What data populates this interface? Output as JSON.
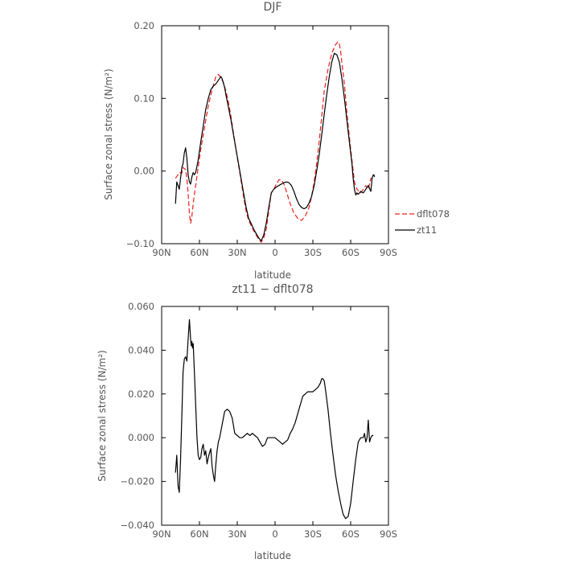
{
  "chart_data": [
    {
      "type": "line",
      "title": "DJF",
      "xlabel": "latitude",
      "ylabel": "Surface zonal stress (N/m²)",
      "xlim": [
        90,
        -90
      ],
      "ylim": [
        -0.1,
        0.2
      ],
      "x_ticks": [
        {
          "value": 90,
          "label": "90N"
        },
        {
          "value": 60,
          "label": "60N"
        },
        {
          "value": 30,
          "label": "30N"
        },
        {
          "value": 0,
          "label": "0"
        },
        {
          "value": -30,
          "label": "30S"
        },
        {
          "value": -60,
          "label": "60S"
        },
        {
          "value": -90,
          "label": "90S"
        }
      ],
      "y_ticks": [
        {
          "value": 0.2,
          "label": "0.20"
        },
        {
          "value": 0.1,
          "label": "0.10"
        },
        {
          "value": 0.0,
          "label": "0.00"
        },
        {
          "value": -0.1,
          "label": "−0.10"
        }
      ],
      "legend_position": "right",
      "series": [
        {
          "name": "dflt078",
          "color": "#e8211f",
          "dash": "dashed",
          "x": [
            79,
            77,
            76,
            74,
            73,
            71,
            70,
            69,
            68,
            67,
            66,
            65,
            64,
            63,
            61,
            59,
            56,
            53,
            50,
            47,
            45,
            44,
            43,
            41,
            39,
            37,
            35,
            33,
            31,
            29,
            27,
            25,
            23,
            21,
            19,
            17,
            15,
            13,
            11,
            9,
            7,
            5,
            3,
            1,
            -1,
            -3,
            -5,
            -7,
            -9,
            -12,
            -15,
            -18,
            -21,
            -24,
            -27,
            -29,
            -31,
            -33,
            -35,
            -37,
            -39,
            -42,
            -45,
            -48,
            -50,
            -51,
            -52,
            -53,
            -55,
            -57,
            -60,
            -63,
            -65,
            -68,
            -70,
            -72,
            -74,
            -76,
            -77,
            -79
          ],
          "values": [
            -0.01,
            -0.005,
            -0.002,
            -0.003,
            0.005,
            0.002,
            -0.01,
            -0.03,
            -0.058,
            -0.072,
            -0.062,
            -0.045,
            -0.032,
            -0.02,
            0.005,
            0.03,
            0.06,
            0.09,
            0.112,
            0.13,
            0.133,
            0.131,
            0.128,
            0.122,
            0.11,
            0.095,
            0.075,
            0.052,
            0.03,
            0.008,
            -0.013,
            -0.035,
            -0.055,
            -0.068,
            -0.075,
            -0.082,
            -0.088,
            -0.094,
            -0.098,
            -0.092,
            -0.08,
            -0.055,
            -0.03,
            -0.025,
            -0.018,
            -0.012,
            -0.012,
            -0.018,
            -0.028,
            -0.045,
            -0.058,
            -0.065,
            -0.068,
            -0.062,
            -0.05,
            -0.035,
            -0.015,
            0.01,
            0.04,
            0.075,
            0.11,
            0.14,
            0.162,
            0.174,
            0.178,
            0.175,
            0.165,
            0.15,
            0.12,
            0.08,
            0.03,
            -0.015,
            -0.025,
            -0.03,
            -0.025,
            -0.02,
            -0.025,
            -0.01,
            -0.01,
            -0.005
          ]
        },
        {
          "name": "zt11",
          "color": "#000000",
          "dash": "solid",
          "x": [
            79,
            78,
            77,
            76,
            75,
            74,
            73,
            72,
            71,
            70,
            69,
            68,
            67,
            66,
            65,
            64,
            63,
            61,
            59,
            57,
            55,
            53,
            51,
            49,
            47,
            45,
            43,
            42,
            41,
            40,
            39,
            37,
            35,
            33,
            31,
            29,
            27,
            25,
            23,
            21,
            19,
            17,
            15,
            13,
            11,
            9,
            7,
            5,
            3,
            1,
            -1,
            -3,
            -5,
            -7,
            -9,
            -11,
            -13,
            -15,
            -17,
            -19,
            -21,
            -23,
            -25,
            -27,
            -29,
            -31,
            -33,
            -35,
            -37,
            -39,
            -41,
            -43,
            -45,
            -47,
            -49,
            -51,
            -53,
            -55,
            -57,
            -59,
            -61,
            -62,
            -63,
            -64,
            -65,
            -66,
            -68,
            -70,
            -72,
            -74,
            -76,
            -77,
            -78,
            -79
          ],
          "values": [
            -0.045,
            -0.015,
            -0.02,
            -0.025,
            -0.01,
            0.005,
            0.01,
            0.025,
            0.032,
            0.018,
            -0.005,
            -0.015,
            -0.018,
            -0.008,
            -0.002,
            -0.005,
            -0.002,
            0.015,
            0.04,
            0.062,
            0.085,
            0.1,
            0.112,
            0.117,
            0.12,
            0.125,
            0.13,
            0.127,
            0.121,
            0.115,
            0.105,
            0.088,
            0.07,
            0.05,
            0.03,
            0.01,
            -0.01,
            -0.03,
            -0.05,
            -0.065,
            -0.072,
            -0.08,
            -0.086,
            -0.092,
            -0.096,
            -0.088,
            -0.072,
            -0.05,
            -0.03,
            -0.025,
            -0.022,
            -0.02,
            -0.018,
            -0.016,
            -0.015,
            -0.016,
            -0.02,
            -0.028,
            -0.038,
            -0.046,
            -0.05,
            -0.052,
            -0.05,
            -0.044,
            -0.035,
            -0.02,
            0.0,
            0.022,
            0.05,
            0.078,
            0.105,
            0.13,
            0.15,
            0.162,
            0.16,
            0.15,
            0.128,
            0.1,
            0.07,
            0.04,
            0.01,
            -0.01,
            -0.025,
            -0.033,
            -0.03,
            -0.032,
            -0.028,
            -0.03,
            -0.025,
            -0.02,
            -0.028,
            -0.01,
            -0.005,
            -0.008
          ]
        }
      ]
    },
    {
      "type": "line",
      "title": "zt11 − dflt078",
      "xlabel": "latitude",
      "ylabel": "Surface zonal stress (N/m²)",
      "xlim": [
        90,
        -90
      ],
      "ylim": [
        -0.04,
        0.06
      ],
      "x_ticks": [
        {
          "value": 90,
          "label": "90N"
        },
        {
          "value": 60,
          "label": "60N"
        },
        {
          "value": 30,
          "label": "30N"
        },
        {
          "value": 0,
          "label": "0"
        },
        {
          "value": -30,
          "label": "30S"
        },
        {
          "value": -60,
          "label": "60S"
        },
        {
          "value": -90,
          "label": "90S"
        }
      ],
      "y_ticks": [
        {
          "value": 0.06,
          "label": "0.060"
        },
        {
          "value": 0.04,
          "label": "0.040"
        },
        {
          "value": 0.02,
          "label": "0.020"
        },
        {
          "value": 0.0,
          "label": "0.000"
        },
        {
          "value": -0.02,
          "label": "−0.020"
        },
        {
          "value": -0.04,
          "label": "−0.040"
        }
      ],
      "series": [
        {
          "color": "#000000",
          "dash": "solid",
          "x": [
            79,
            78,
            77,
            76,
            75,
            74,
            73,
            72,
            71,
            70,
            69,
            68,
            67,
            66.5,
            66,
            65.5,
            65,
            64,
            63,
            62,
            61,
            60,
            59,
            58,
            57,
            56,
            55,
            54,
            53,
            52,
            51,
            50,
            49,
            48,
            47,
            46,
            45,
            44,
            42,
            40,
            38,
            36,
            34,
            32,
            30,
            28,
            26,
            24,
            22,
            20,
            18,
            16,
            14,
            12,
            10,
            8,
            6,
            4,
            2,
            0,
            -2,
            -4,
            -6,
            -8,
            -10,
            -12,
            -14,
            -16,
            -18,
            -20,
            -22,
            -24,
            -26,
            -28,
            -30,
            -32,
            -34,
            -36,
            -37,
            -38,
            -39,
            -40,
            -42,
            -44,
            -46,
            -48,
            -50,
            -52,
            -54,
            -56,
            -58,
            -60,
            -62,
            -64,
            -66,
            -68,
            -70,
            -71,
            -72,
            -73,
            -74,
            -75,
            -76,
            -77,
            -78
          ],
          "values": [
            -0.016,
            -0.008,
            -0.022,
            -0.025,
            -0.01,
            0.01,
            0.03,
            0.036,
            0.037,
            0.035,
            0.045,
            0.054,
            0.045,
            0.042,
            0.044,
            0.041,
            0.043,
            0.03,
            0.015,
            0.0,
            -0.008,
            -0.01,
            -0.009,
            -0.005,
            -0.003,
            -0.008,
            -0.006,
            -0.012,
            -0.009,
            -0.007,
            -0.005,
            -0.013,
            -0.017,
            -0.02,
            -0.012,
            -0.006,
            -0.002,
            0.0,
            0.006,
            0.012,
            0.013,
            0.012,
            0.009,
            0.002,
            0.001,
            0.0,
            0.0,
            0.001,
            0.002,
            0.001,
            0.002,
            0.001,
            0.0,
            -0.002,
            -0.004,
            -0.003,
            0.0,
            0.0,
            0.0,
            0.0,
            -0.001,
            -0.002,
            -0.003,
            -0.002,
            -0.001,
            0.002,
            0.004,
            0.007,
            0.011,
            0.015,
            0.019,
            0.02,
            0.021,
            0.021,
            0.021,
            0.022,
            0.023,
            0.025,
            0.027,
            0.027,
            0.026,
            0.022,
            0.013,
            0.002,
            -0.008,
            -0.017,
            -0.024,
            -0.03,
            -0.035,
            -0.037,
            -0.036,
            -0.03,
            -0.02,
            -0.01,
            -0.002,
            0.0,
            0.0,
            0.002,
            -0.002,
            0.0,
            0.008,
            -0.002,
            0.0,
            0.001,
            0.001
          ]
        }
      ]
    }
  ]
}
